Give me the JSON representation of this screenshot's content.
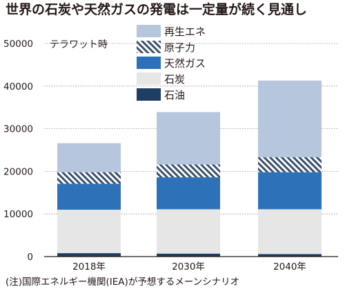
{
  "chart_data": {
    "type": "bar",
    "stacked": true,
    "title": "世界の石炭や天然ガスの発電は一定量が続く見通し",
    "unit": "テラワット時",
    "note": "(注)国際エネルギー機関(IEA)が予想するメーンシナリオ",
    "categories": [
      "2018年",
      "2030年",
      "2040年"
    ],
    "ylim": [
      0,
      50000
    ],
    "yticks": [
      0,
      10000,
      20000,
      30000,
      40000,
      50000
    ],
    "series": [
      {
        "name": "石油",
        "color": "#1d3d64",
        "pattern": "solid",
        "values": [
          800,
          700,
          600
        ]
      },
      {
        "name": "石炭",
        "color": "#e6e6e6",
        "pattern": "solid",
        "values": [
          10200,
          10400,
          10500
        ]
      },
      {
        "name": "天然ガス",
        "color": "#2d72b8",
        "pattern": "solid",
        "values": [
          6100,
          7500,
          8700
        ]
      },
      {
        "name": "原子力",
        "color": "#3a4f6e",
        "pattern": "hatch",
        "values": [
          2700,
          3000,
          3500
        ]
      },
      {
        "name": "再生エネ",
        "color": "#b6c6dc",
        "pattern": "solid",
        "values": [
          6800,
          12300,
          18000
        ]
      }
    ],
    "legend": {
      "position": "top-left",
      "order": [
        "再生エネ",
        "原子力",
        "天然ガス",
        "石炭",
        "石油"
      ]
    }
  }
}
